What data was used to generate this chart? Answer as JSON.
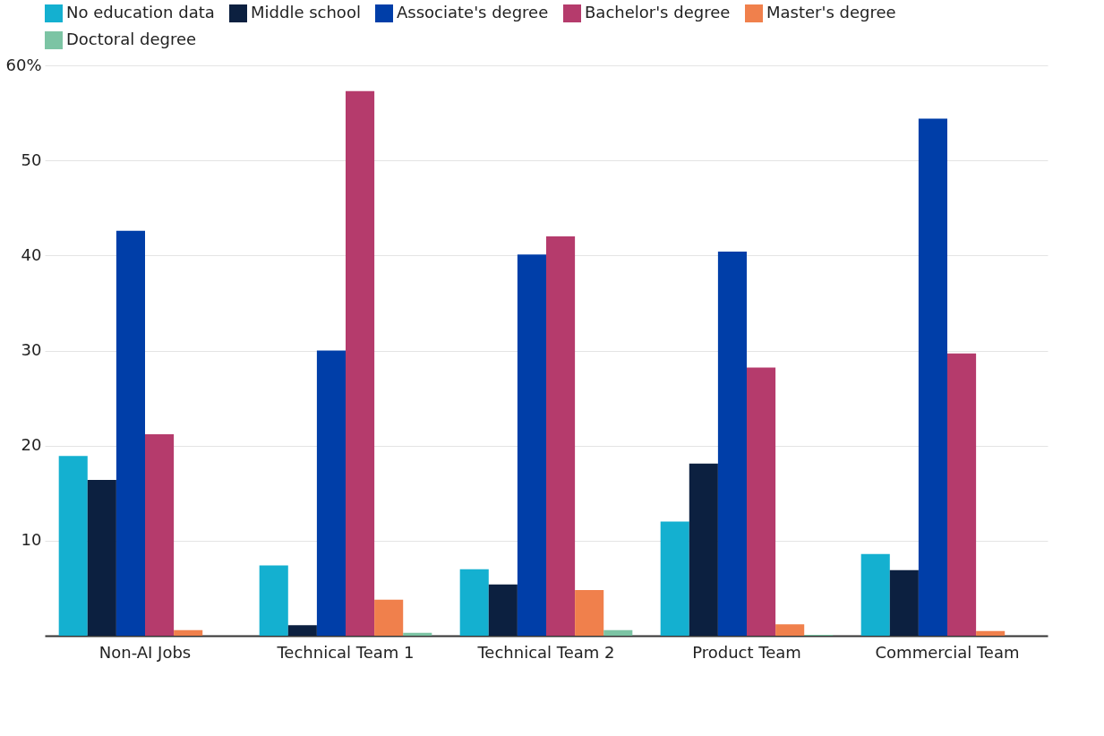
{
  "chart_data": {
    "type": "bar",
    "categories": [
      "Non-AI Jobs",
      "Technical Team 1",
      "Technical Team 2",
      "Product Team",
      "Commercial Team"
    ],
    "series": [
      {
        "name": "No education data",
        "color": "#14b0d0",
        "values": [
          18.9,
          7.4,
          7.0,
          12.0,
          8.6
        ]
      },
      {
        "name": "Middle school",
        "color": "#0c2040",
        "values": [
          16.4,
          1.1,
          5.4,
          18.1,
          6.9
        ]
      },
      {
        "name": "Associate's degree",
        "color": "#003ea8",
        "values": [
          42.6,
          30.0,
          40.1,
          40.4,
          54.4
        ]
      },
      {
        "name": "Bachelor's degree",
        "color": "#b53b6c",
        "values": [
          21.2,
          57.3,
          42.0,
          28.2,
          29.7
        ]
      },
      {
        "name": "Master's degree",
        "color": "#f0804c",
        "values": [
          0.6,
          3.8,
          4.8,
          1.2,
          0.5
        ]
      },
      {
        "name": "Doctoral degree",
        "color": "#7cc4a4",
        "values": [
          0,
          0.3,
          0.6,
          0.1,
          0
        ]
      }
    ],
    "ylim": [
      0,
      60
    ],
    "yticks": [
      10,
      20,
      30,
      40,
      50,
      {
        "value": 60,
        "label": "60%"
      }
    ],
    "grid": "y",
    "legend": "top left"
  }
}
